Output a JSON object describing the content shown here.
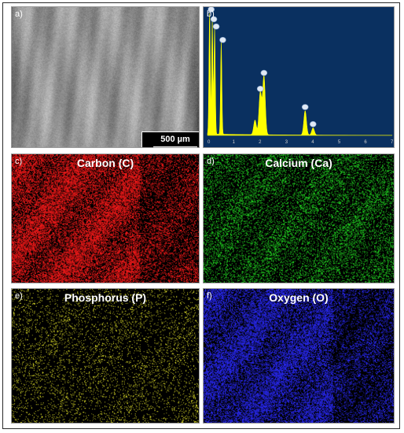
{
  "panels": {
    "a": {
      "letter": "a)",
      "scale_bar": "500 µm"
    },
    "b": {
      "letter": "b)",
      "background_color": "#0a3060",
      "fill_color": "#ffff00",
      "x_ticks": [
        "0",
        "1",
        "2",
        "3",
        "4",
        "5",
        "6",
        "7"
      ]
    },
    "c": {
      "letter": "c)",
      "title": "Carbon (C)",
      "dot_color": "#ff1a1a"
    },
    "d": {
      "letter": "d)",
      "title": "Calcium (Ca)",
      "dot_color": "#22dd22"
    },
    "e": {
      "letter": "e)",
      "title": "Phosphorus (P)",
      "dot_color": "#e6e62a"
    },
    "f": {
      "letter": "f)",
      "title": "Oxygen (O)",
      "dot_color": "#2a2aff"
    }
  },
  "chart_data": {
    "type": "area",
    "title": "",
    "xlabel": "",
    "ylabel": "",
    "xlim": [
      0,
      7
    ],
    "peaks": [
      {
        "x": 0.08,
        "height": 1.0
      },
      {
        "x": 0.18,
        "height": 0.92
      },
      {
        "x": 0.27,
        "height": 0.86
      },
      {
        "x": 0.52,
        "height": 0.75
      },
      {
        "x": 1.8,
        "height": 0.12
      },
      {
        "x": 2.0,
        "height": 0.35
      },
      {
        "x": 2.14,
        "height": 0.48
      },
      {
        "x": 3.7,
        "height": 0.2
      },
      {
        "x": 4.0,
        "height": 0.06
      }
    ]
  }
}
